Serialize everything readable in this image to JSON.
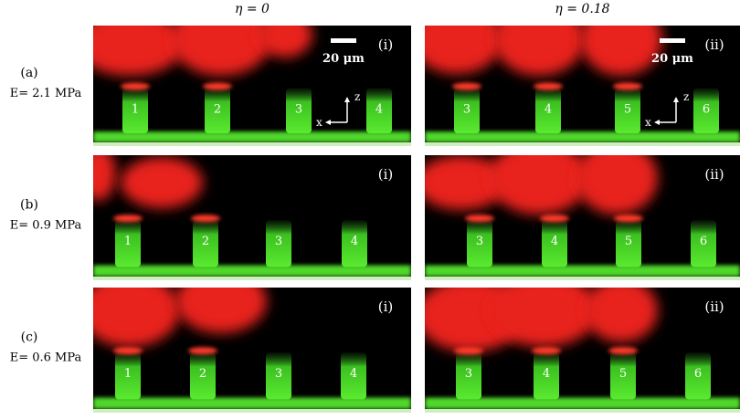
{
  "columns": [
    "η = 0",
    "η = 0.18"
  ],
  "rows": [
    {
      "letter": "(a)",
      "modulus": "E= 2.1 MPa",
      "panels": [
        {
          "label": "(i)",
          "pillars": [
            "1",
            "2",
            "3",
            "4"
          ]
        },
        {
          "label": "(ii)",
          "pillars": [
            "3",
            "4",
            "5",
            "6"
          ]
        }
      ]
    },
    {
      "letter": "(b)",
      "modulus": "E= 0.9 MPa",
      "panels": [
        {
          "label": "(i)",
          "pillars": [
            "1",
            "2",
            "3",
            "4"
          ]
        },
        {
          "label": "(ii)",
          "pillars": [
            "3",
            "4",
            "5",
            "6"
          ]
        }
      ]
    },
    {
      "letter": "(c)",
      "modulus": "E= 0.6 MPa",
      "panels": [
        {
          "label": "(i)",
          "pillars": [
            "1",
            "2",
            "3",
            "4"
          ]
        },
        {
          "label": "(ii)",
          "pillars": [
            "3",
            "4",
            "5",
            "6"
          ]
        }
      ]
    }
  ],
  "scale_bar": "20 μm",
  "axis_z": "z",
  "axis_x": "x"
}
